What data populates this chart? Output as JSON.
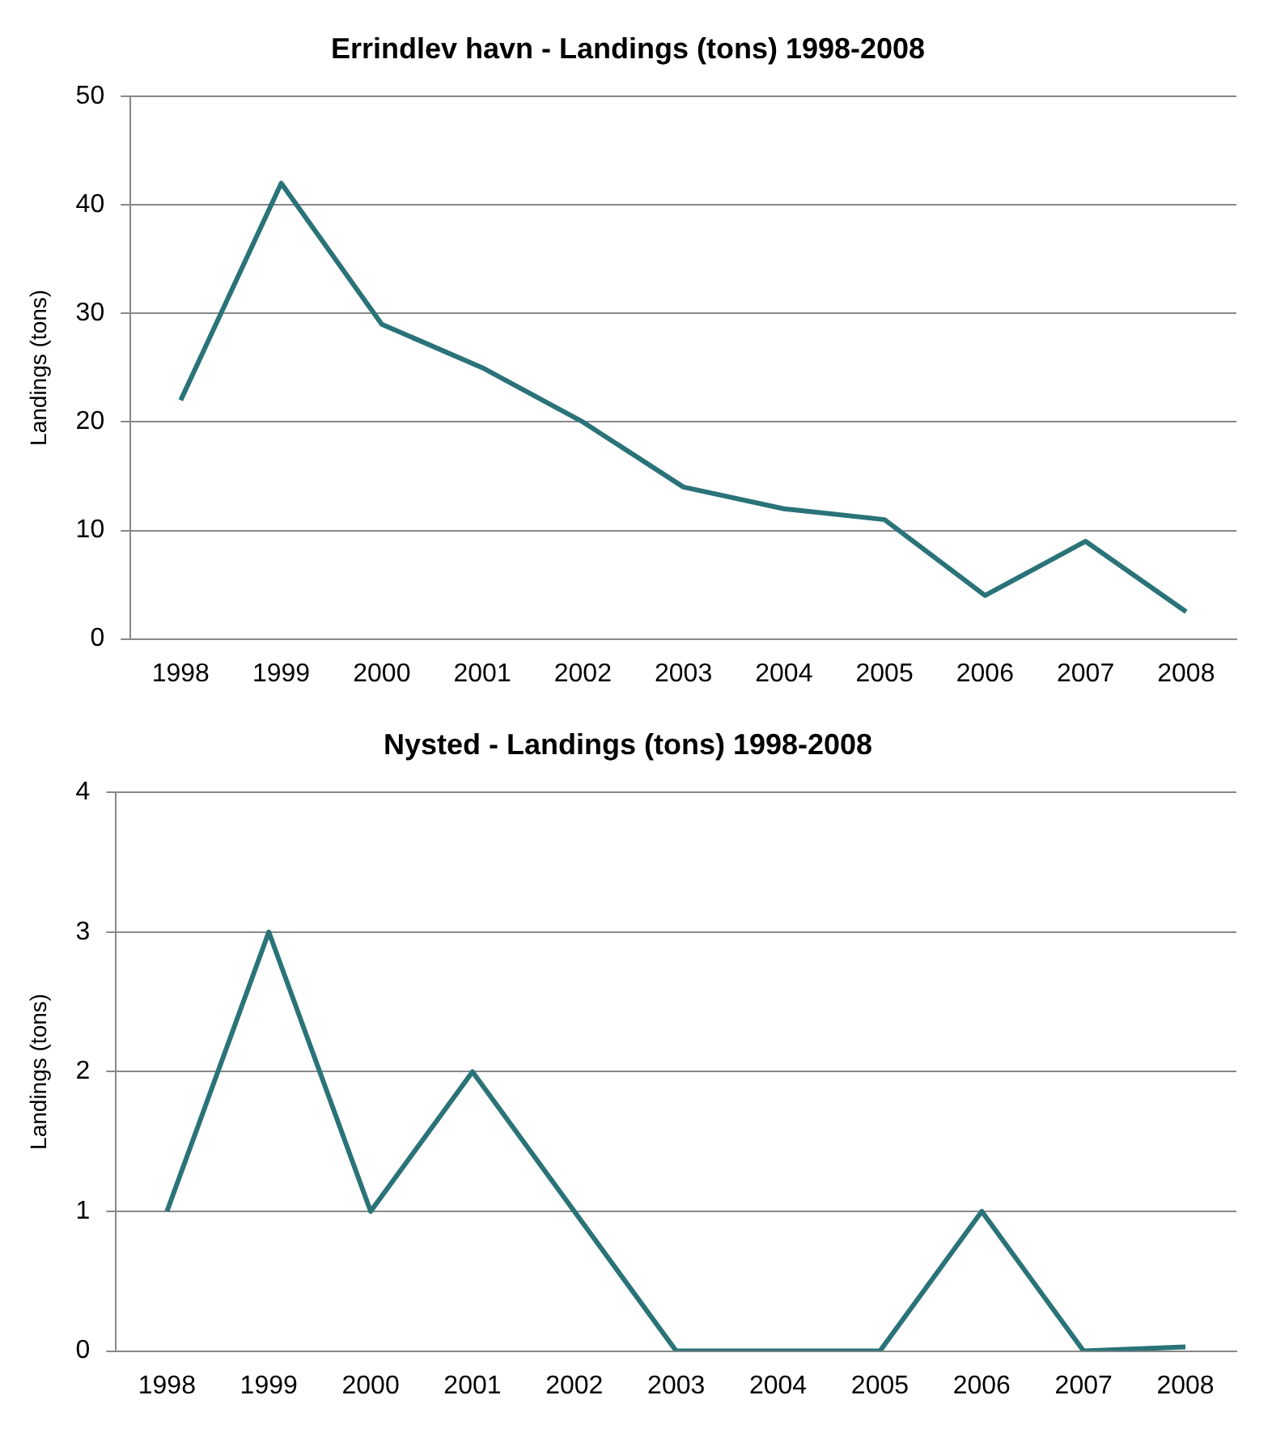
{
  "chart_data": [
    {
      "type": "line",
      "title": "Errindlev havn - Landings (tons) 1998-2008",
      "ylabel": "Landings (tons)",
      "categories": [
        "1998",
        "1999",
        "2000",
        "2001",
        "2002",
        "2003",
        "2004",
        "2005",
        "2006",
        "2007",
        "2008"
      ],
      "series": [
        {
          "color": "#2a7378",
          "values": [
            22,
            42,
            29,
            25,
            20,
            14,
            12,
            11,
            4,
            9,
            2.5
          ]
        }
      ],
      "ylim": [
        0,
        50
      ],
      "yticks": [
        0,
        10,
        20,
        30,
        40,
        50
      ],
      "grid": "y",
      "legend": false,
      "marker": "none",
      "line_style": "solid"
    },
    {
      "type": "line",
      "title": "Nysted - Landings (tons) 1998-2008",
      "ylabel": "Landings (tons)",
      "categories": [
        "1998",
        "1999",
        "2000",
        "2001",
        "2002",
        "2003",
        "2004",
        "2005",
        "2006",
        "2007",
        "2008"
      ],
      "series": [
        {
          "color": "#2a7378",
          "values": [
            1,
            3,
            1,
            2,
            1,
            0,
            0,
            0,
            1,
            0,
            0.03
          ]
        }
      ],
      "ylim": [
        0,
        4
      ],
      "yticks": [
        0,
        1,
        2,
        3,
        4
      ],
      "grid": "y",
      "legend": false,
      "marker": "none",
      "line_style": "solid"
    }
  ]
}
